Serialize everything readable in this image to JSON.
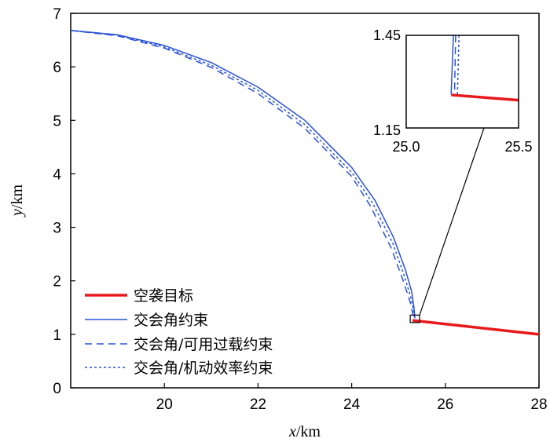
{
  "chart_data": {
    "type": "line",
    "xlabel": {
      "var": "x",
      "unit": "/km"
    },
    "ylabel": {
      "var": "y",
      "unit": "/km"
    },
    "xlim": [
      18,
      28
    ],
    "ylim": [
      0,
      7
    ],
    "xticks": [
      20,
      22,
      24,
      26,
      28
    ],
    "yticks": [
      0,
      1,
      2,
      3,
      4,
      5,
      6,
      7
    ],
    "grid": false,
    "legend_position": "lower-left",
    "series": [
      {
        "name": "空袭目标",
        "color": "#e8191c",
        "style": "solid-thick",
        "x": [
          25.3,
          28
        ],
        "y": [
          1.26,
          1.0
        ]
      },
      {
        "name": "交会角约束",
        "color": "#2a52d6",
        "style": "solid",
        "x": [
          18,
          19,
          20,
          21,
          22,
          23,
          24,
          24.5,
          24.9,
          25.15,
          25.28,
          25.33,
          25.35
        ],
        "y": [
          6.68,
          6.6,
          6.4,
          6.08,
          5.62,
          5.0,
          4.12,
          3.5,
          2.8,
          2.2,
          1.8,
          1.5,
          1.3
        ]
      },
      {
        "name": "交会角/可用过载约束",
        "color": "#2a52d6",
        "style": "dashed",
        "x": [
          18,
          19,
          20,
          21,
          22,
          23,
          24,
          24.4,
          24.85,
          25.1,
          25.25,
          25.3,
          25.33
        ],
        "y": [
          6.68,
          6.58,
          6.35,
          5.99,
          5.5,
          4.85,
          3.95,
          3.4,
          2.6,
          2.0,
          1.6,
          1.4,
          1.3
        ]
      },
      {
        "name": "交会角/机动效率约束",
        "color": "#2a52d6",
        "style": "dotted",
        "x": [
          18,
          19,
          20,
          21,
          22,
          23,
          24,
          24.45,
          24.88,
          25.12,
          25.26,
          25.32,
          25.34
        ],
        "y": [
          6.68,
          6.59,
          6.37,
          6.03,
          5.56,
          4.92,
          4.03,
          3.45,
          2.7,
          2.1,
          1.7,
          1.45,
          1.3
        ]
      }
    ],
    "inset": {
      "xlim": [
        25.0,
        25.5
      ],
      "ylim": [
        1.15,
        1.45
      ],
      "xtick_labels": [
        "25.0",
        "25.5"
      ],
      "ytick_labels": [
        "1.15",
        "1.45"
      ],
      "zoom_region": {
        "x": [
          25.25,
          25.45
        ],
        "y": [
          1.22,
          1.36
        ]
      },
      "series": [
        {
          "name": "空袭目标",
          "x": [
            25.2,
            25.5
          ],
          "y": [
            1.257,
            1.24
          ]
        },
        {
          "name": "交会角约束",
          "x": [
            25.21,
            25.2
          ],
          "y": [
            1.45,
            1.26
          ]
        },
        {
          "name": "交会角/可用过载约束",
          "x": [
            25.22,
            25.215
          ],
          "y": [
            1.45,
            1.26
          ]
        },
        {
          "name": "交会角/机动效率约束",
          "x": [
            25.235,
            25.228
          ],
          "y": [
            1.45,
            1.26
          ]
        }
      ]
    }
  }
}
